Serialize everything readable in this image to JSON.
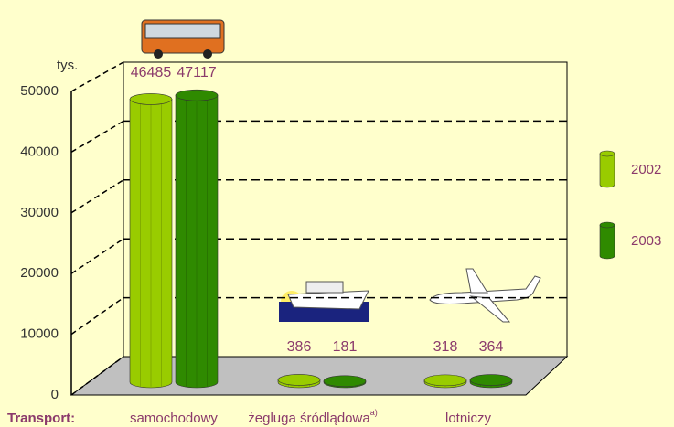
{
  "chart_data": {
    "type": "bar3d",
    "y_label": "tys.",
    "x_label": "Transport:",
    "categories": [
      "samochodowy",
      "żegluga śródlądowa",
      "lotniczy"
    ],
    "category_superscripts": [
      null,
      "a)",
      null
    ],
    "series": [
      {
        "name": "2002",
        "color": "#99cc00",
        "values": [
          46485,
          386,
          318
        ]
      },
      {
        "name": "2003",
        "color": "#2f8a00",
        "values": [
          47117,
          181,
          364
        ]
      }
    ],
    "ylim": [
      0,
      50000
    ],
    "yticks": [
      0,
      10000,
      20000,
      30000,
      40000,
      50000
    ],
    "grid": true
  }
}
